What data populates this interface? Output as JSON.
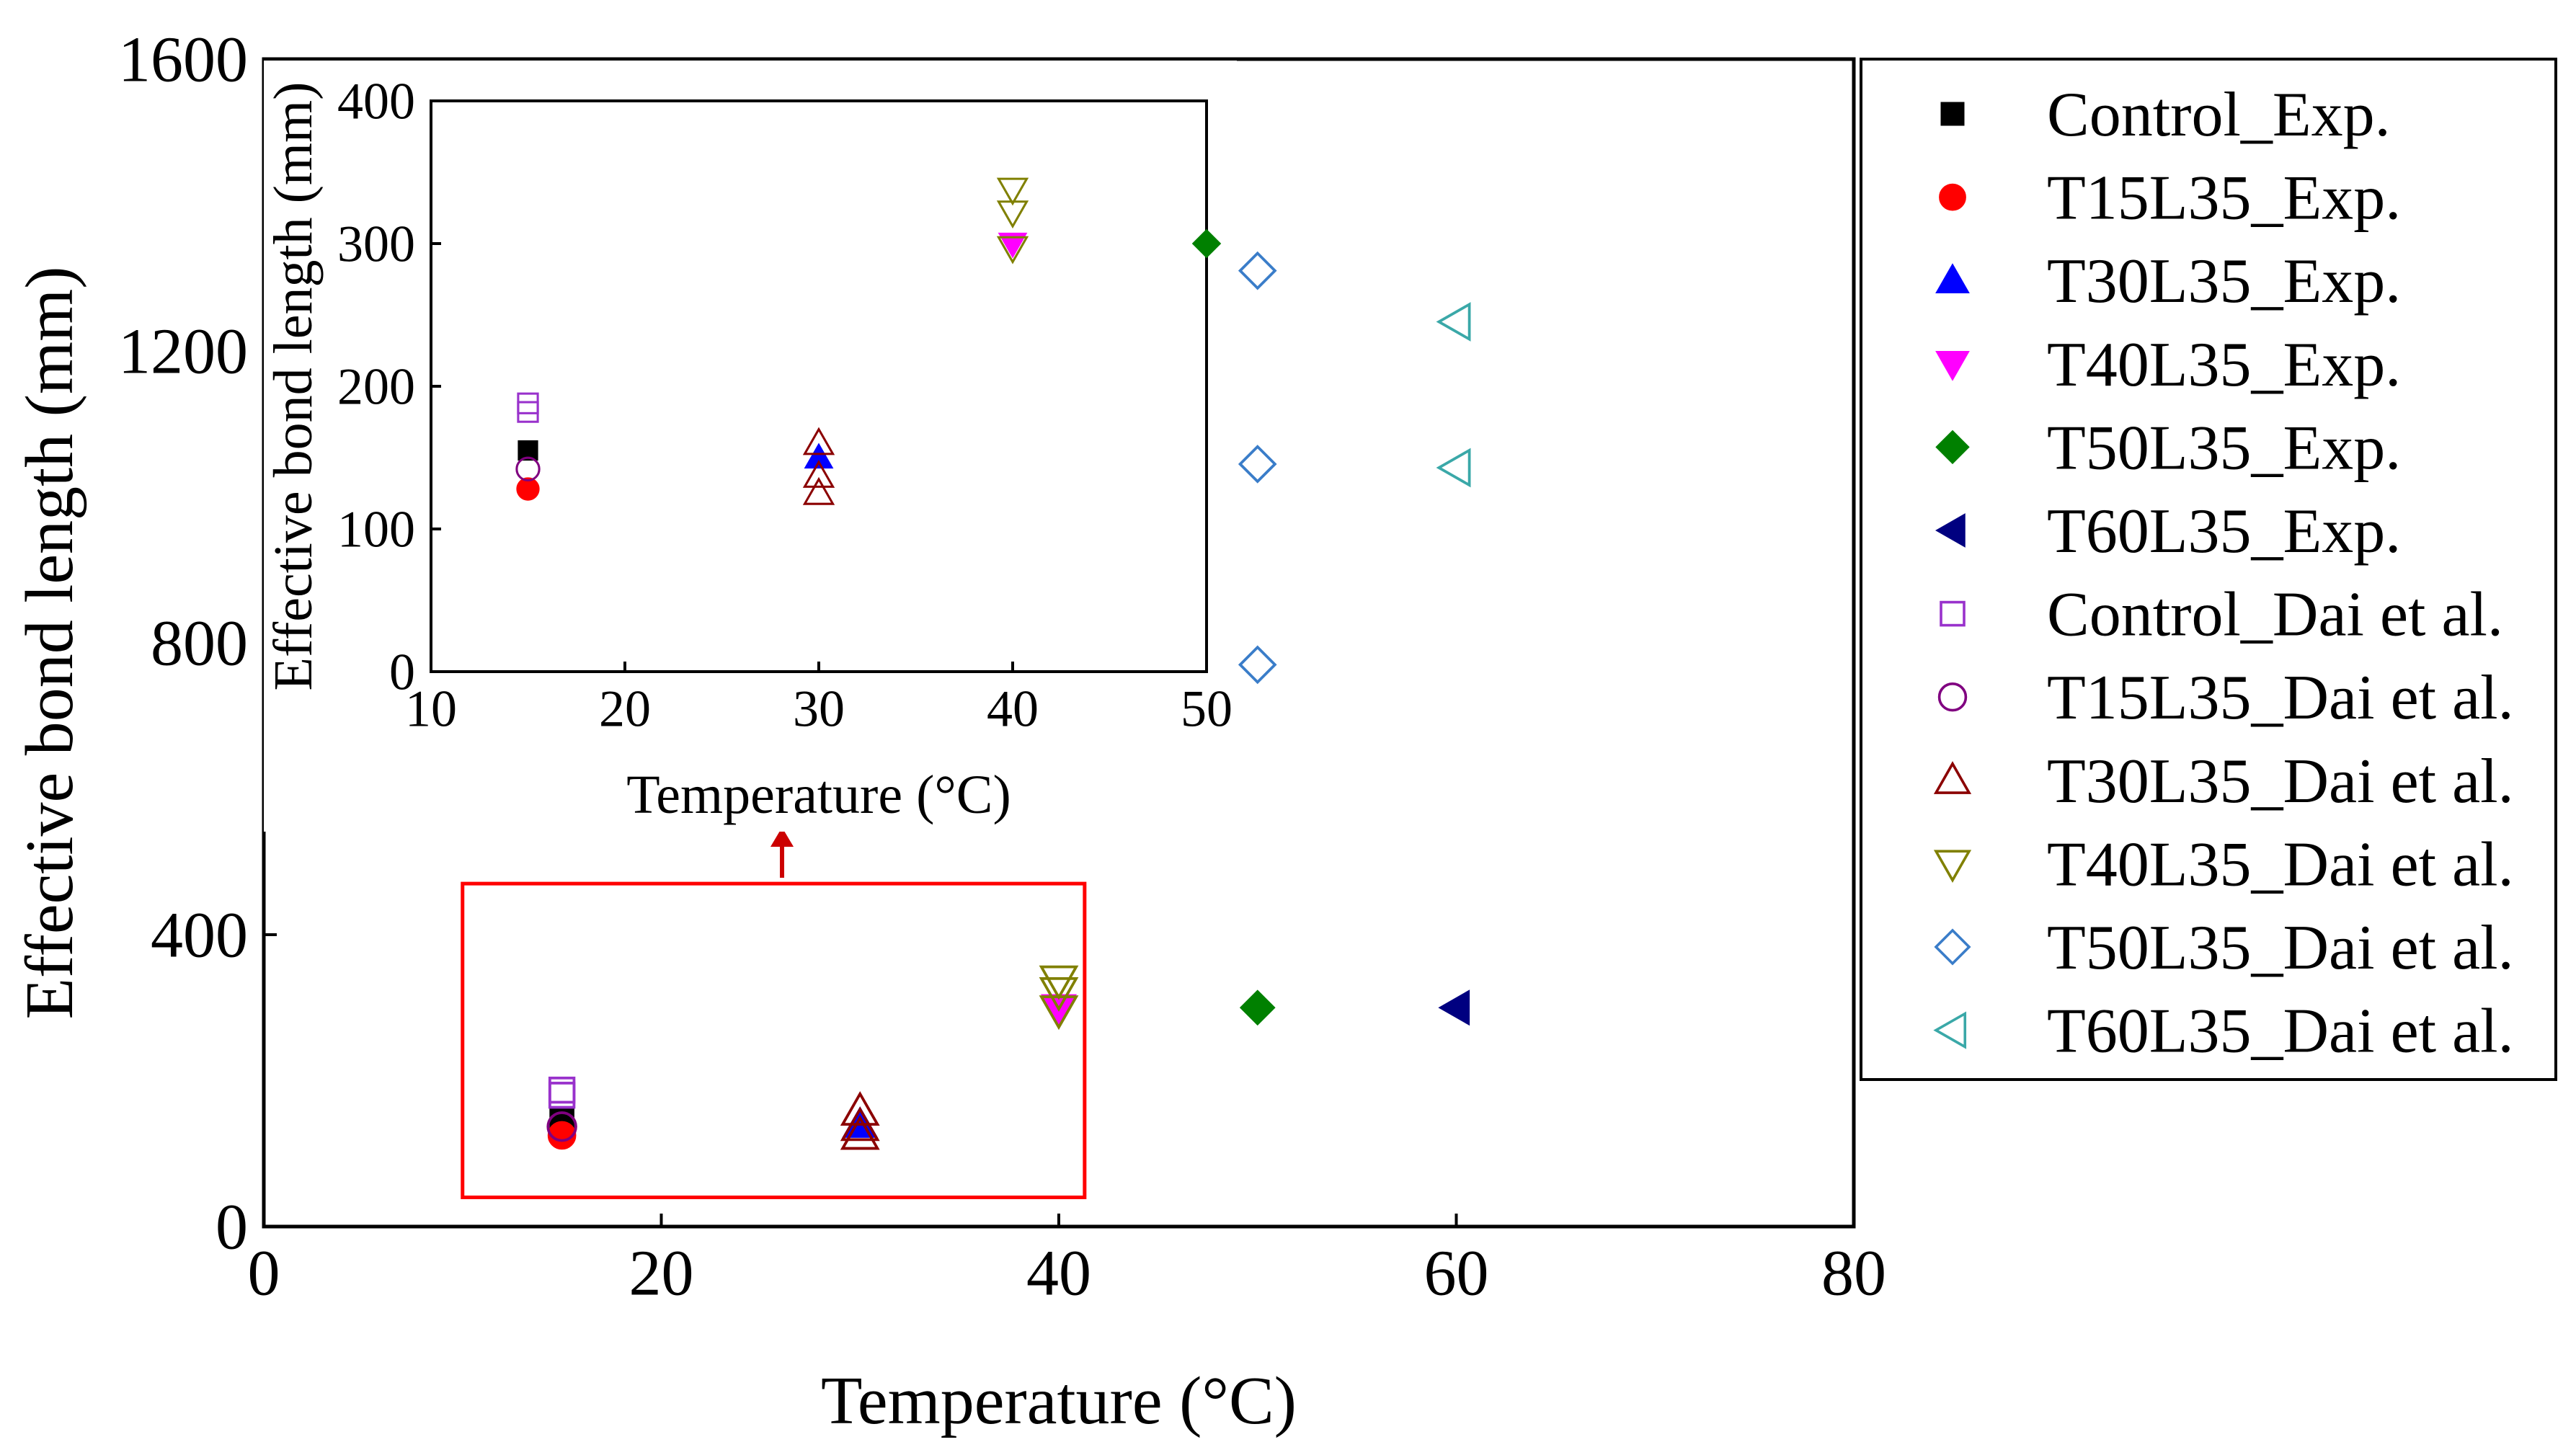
{
  "colors": {
    "axis": "#000000",
    "zoom_box": "#ff0000",
    "arrow": "#cc0000"
  },
  "legend": {
    "entries": [
      {
        "label": "Control_Exp.",
        "marker": "square",
        "fill": true,
        "color": "#000000"
      },
      {
        "label": "T15L35_Exp.",
        "marker": "circle",
        "fill": true,
        "color": "#ff0000"
      },
      {
        "label": "T30L35_Exp.",
        "marker": "triangle-up",
        "fill": true,
        "color": "#0000ff"
      },
      {
        "label": "T40L35_Exp.",
        "marker": "triangle-down",
        "fill": true,
        "color": "#ff00ff"
      },
      {
        "label": "T50L35_Exp.",
        "marker": "diamond",
        "fill": true,
        "color": "#008000"
      },
      {
        "label": "T60L35_Exp.",
        "marker": "triangle-left",
        "fill": true,
        "color": "#000080"
      },
      {
        "label": "Control_Dai et al.",
        "marker": "square",
        "fill": false,
        "color": "#9932cc"
      },
      {
        "label": "T15L35_Dai et al.",
        "marker": "circle",
        "fill": false,
        "color": "#800080"
      },
      {
        "label": "T30L35_Dai et al.",
        "marker": "triangle-up",
        "fill": false,
        "color": "#8b0000"
      },
      {
        "label": "T40L35_Dai et al.",
        "marker": "triangle-down",
        "fill": false,
        "color": "#808000"
      },
      {
        "label": "T50L35_Dai et al.",
        "marker": "diamond",
        "fill": false,
        "color": "#3a7dc9"
      },
      {
        "label": "T60L35_Dai et al.",
        "marker": "triangle-left",
        "fill": false,
        "color": "#3aa8a8"
      }
    ]
  },
  "chart_data": [
    {
      "id": "main",
      "type": "scatter",
      "title": "",
      "xlabel": "Temperature (°C)",
      "ylabel": "Effective bond length (mm)",
      "xlim": [
        0,
        80
      ],
      "ylim": [
        0,
        1600
      ],
      "xticks": [
        0,
        20,
        40,
        60,
        80
      ],
      "yticks": [
        0,
        400,
        800,
        1200,
        1600
      ],
      "grid": false,
      "legend_position": "right-outside",
      "zoom_region": {
        "x": [
          10,
          41.3
        ],
        "y": [
          40,
          470
        ]
      },
      "series": [
        {
          "name": "Control_Exp.",
          "points": [
            [
              15,
              145
            ]
          ]
        },
        {
          "name": "T15L35_Exp.",
          "points": [
            [
              15,
              125
            ]
          ]
        },
        {
          "name": "T30L35_Exp.",
          "points": [
            [
              30,
              140
            ]
          ]
        },
        {
          "name": "T40L35_Exp.",
          "points": [
            [
              40,
              300
            ]
          ]
        },
        {
          "name": "T50L35_Exp.",
          "points": [
            [
              50,
              300
            ]
          ]
        },
        {
          "name": "T60L35_Exp.",
          "points": [
            [
              60,
              300
            ]
          ]
        },
        {
          "name": "Control_Dai et al.",
          "points": [
            [
              15,
              180
            ],
            [
              15,
              187
            ]
          ]
        },
        {
          "name": "T15L35_Dai et al.",
          "points": [
            [
              15,
              137
            ]
          ]
        },
        {
          "name": "T30L35_Dai et al.",
          "points": [
            [
              30,
              158
            ],
            [
              30,
              125
            ],
            [
              30,
              137
            ]
          ]
        },
        {
          "name": "T40L35_Dai et al.",
          "points": [
            [
              40,
              338
            ],
            [
              40,
              322
            ],
            [
              40,
              297
            ]
          ]
        },
        {
          "name": "T50L35_Dai et al.",
          "points": [
            [
              50,
              1310
            ],
            [
              50,
              1045
            ],
            [
              50,
              770
            ]
          ]
        },
        {
          "name": "T60L35_Dai et al.",
          "points": [
            [
              60,
              1240
            ],
            [
              60,
              1040
            ]
          ]
        }
      ]
    },
    {
      "id": "inset",
      "type": "scatter",
      "title": "",
      "xlabel": "Temperature (°C)",
      "ylabel": "Effective bond length (mm)",
      "xlim": [
        10,
        50
      ],
      "ylim": [
        0,
        400
      ],
      "xticks": [
        10,
        20,
        30,
        40,
        50
      ],
      "yticks": [
        0,
        100,
        200,
        300,
        400
      ],
      "grid": false,
      "series": [
        {
          "name": "Control_Exp.",
          "points": [
            [
              15,
              155
            ]
          ]
        },
        {
          "name": "T15L35_Exp.",
          "points": [
            [
              15,
              128
            ]
          ]
        },
        {
          "name": "T30L35_Exp.",
          "points": [
            [
              30,
              150
            ]
          ]
        },
        {
          "name": "T40L35_Exp.",
          "points": [
            [
              40,
              300
            ]
          ]
        },
        {
          "name": "T50L35_Exp.",
          "points": [
            [
              50,
              300
            ]
          ]
        },
        {
          "name": "T60L35_Exp.",
          "points": []
        },
        {
          "name": "Control_Dai et al.",
          "points": [
            [
              15,
              188
            ],
            [
              15,
              182
            ]
          ]
        },
        {
          "name": "T15L35_Dai et al.",
          "points": [
            [
              15,
              142
            ]
          ]
        },
        {
          "name": "T30L35_Dai et al.",
          "points": [
            [
              30,
              160
            ],
            [
              30,
              125
            ],
            [
              30,
              137
            ]
          ]
        },
        {
          "name": "T40L35_Dai et al.",
          "points": [
            [
              40,
              338
            ],
            [
              40,
              322
            ],
            [
              40,
              297
            ]
          ]
        },
        {
          "name": "T50L35_Dai et al.",
          "points": []
        },
        {
          "name": "T60L35_Dai et al.",
          "points": []
        }
      ]
    }
  ]
}
